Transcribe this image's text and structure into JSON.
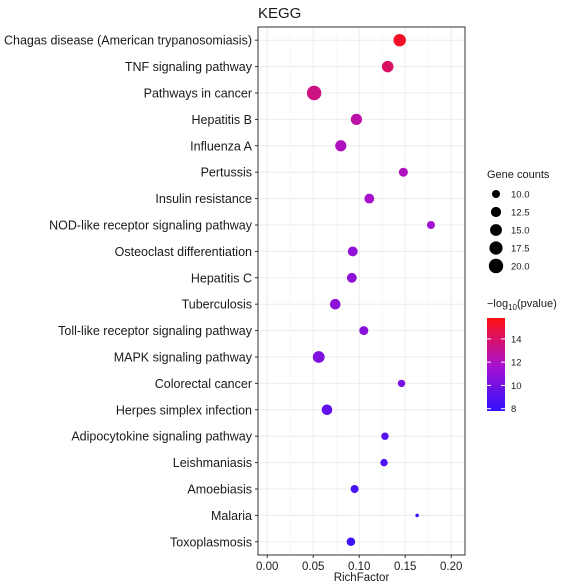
{
  "chart_data": {
    "type": "scatter",
    "title": "KEGG",
    "xlabel": "RichFactor",
    "ylabel": "",
    "xlim": [
      -0.01,
      0.215
    ],
    "xticks": [
      0.0,
      0.05,
      0.1,
      0.15,
      0.2
    ],
    "xtick_labels": [
      "0.00",
      "0.05",
      "0.10",
      "0.15",
      "0.20"
    ],
    "grid": true,
    "categories": [
      "Chagas disease (American trypanosomiasis)",
      "TNF signaling pathway",
      "Pathways in cancer",
      "Hepatitis B",
      "Influenza A",
      "Pertussis",
      "Insulin resistance",
      "NOD-like receptor signaling pathway",
      "Osteoclast differentiation",
      "Hepatitis C",
      "Tuberculosis",
      "Toll-like receptor signaling pathway",
      "MAPK signaling pathway",
      "Colorectal cancer",
      "Herpes simplex infection",
      "Adipocytokine signaling pathway",
      "Leishmaniasis",
      "Amoebiasis",
      "Malaria",
      "Toxoplasmosis"
    ],
    "points": [
      {
        "category": "Chagas disease (American trypanosomiasis)",
        "rich_factor": 0.144,
        "gene_counts": 16,
        "neg_log10_pvalue": 15.3
      },
      {
        "category": "TNF signaling pathway",
        "rich_factor": 0.131,
        "gene_counts": 14.5,
        "neg_log10_pvalue": 14.0
      },
      {
        "category": "Pathways in cancer",
        "rich_factor": 0.051,
        "gene_counts": 20,
        "neg_log10_pvalue": 13.4
      },
      {
        "category": "Hepatitis B",
        "rich_factor": 0.097,
        "gene_counts": 14,
        "neg_log10_pvalue": 12.6
      },
      {
        "category": "Influenza A",
        "rich_factor": 0.08,
        "gene_counts": 14,
        "neg_log10_pvalue": 12.1
      },
      {
        "category": "Pertussis",
        "rich_factor": 0.148,
        "gene_counts": 11,
        "neg_log10_pvalue": 12.1
      },
      {
        "category": "Insulin resistance",
        "rich_factor": 0.111,
        "gene_counts": 12,
        "neg_log10_pvalue": 11.8
      },
      {
        "category": "NOD-like receptor signaling pathway",
        "rich_factor": 0.178,
        "gene_counts": 10,
        "neg_log10_pvalue": 11.5
      },
      {
        "category": "Osteoclast differentiation",
        "rich_factor": 0.093,
        "gene_counts": 12,
        "neg_log10_pvalue": 11.0
      },
      {
        "category": "Hepatitis C",
        "rich_factor": 0.092,
        "gene_counts": 12,
        "neg_log10_pvalue": 10.9
      },
      {
        "category": "Tuberculosis",
        "rich_factor": 0.074,
        "gene_counts": 13,
        "neg_log10_pvalue": 10.8
      },
      {
        "category": "Toll-like receptor signaling pathway",
        "rich_factor": 0.105,
        "gene_counts": 11,
        "neg_log10_pvalue": 10.6
      },
      {
        "category": "MAPK signaling pathway",
        "rich_factor": 0.056,
        "gene_counts": 15,
        "neg_log10_pvalue": 10.3
      },
      {
        "category": "Colorectal cancer",
        "rich_factor": 0.146,
        "gene_counts": 9.5,
        "neg_log10_pvalue": 10.2
      },
      {
        "category": "Herpes simplex infection",
        "rich_factor": 0.065,
        "gene_counts": 13,
        "neg_log10_pvalue": 9.3
      },
      {
        "category": "Adipocytokine signaling pathway",
        "rich_factor": 0.128,
        "gene_counts": 9.5,
        "neg_log10_pvalue": 8.9
      },
      {
        "category": "Leishmaniasis",
        "rich_factor": 0.127,
        "gene_counts": 9.5,
        "neg_log10_pvalue": 8.7
      },
      {
        "category": "Amoebiasis",
        "rich_factor": 0.095,
        "gene_counts": 10,
        "neg_log10_pvalue": 8.6
      },
      {
        "category": "Malaria",
        "rich_factor": 0.163,
        "gene_counts": 8,
        "neg_log10_pvalue": 8.3
      },
      {
        "category": "Toxoplasmosis",
        "rich_factor": 0.091,
        "gene_counts": 10.5,
        "neg_log10_pvalue": 8.2
      }
    ],
    "size_legend": {
      "title": "Gene counts",
      "values": [
        10.0,
        12.5,
        15.0,
        17.5,
        20.0
      ],
      "labels": [
        "10.0",
        "12.5",
        "15.0",
        "17.5",
        "20.0"
      ]
    },
    "color_legend": {
      "title_prefix": "−log",
      "title_sub": "10",
      "title_suffix": "(pvalue)",
      "range": [
        7.8,
        15.8
      ],
      "ticks": [
        8,
        10,
        12,
        14
      ],
      "tick_labels": [
        "8",
        "10",
        "12",
        "14"
      ],
      "low_color": "#3311ff",
      "mid_color": "#aa11cc",
      "high_color": "#ff1111"
    },
    "size_scale": {
      "min_count": 8,
      "max_count": 20
    },
    "colors": {
      "panel_bg": "#ffffff",
      "grid": "#ebebeb",
      "border": "#333333"
    }
  }
}
